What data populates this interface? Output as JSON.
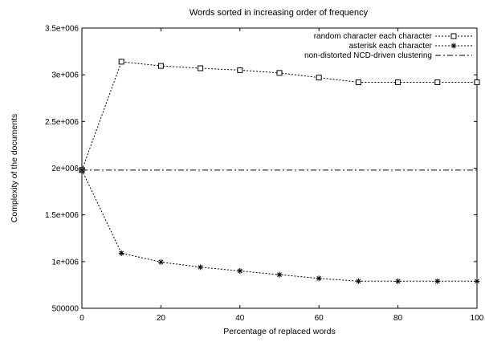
{
  "chart_data": {
    "type": "line",
    "title": "Words sorted in increasing order of frequency",
    "xlabel": "Percentage of replaced words",
    "ylabel": "Complexity of the documents",
    "xlim": [
      0,
      100
    ],
    "ylim": [
      500000,
      3500000
    ],
    "x_ticks": [
      0,
      20,
      40,
      60,
      80,
      100
    ],
    "x_tick_labels": [
      "0",
      "20",
      "40",
      "60",
      "80",
      "100"
    ],
    "y_ticks": [
      500000,
      1000000,
      1500000,
      2000000,
      2500000,
      3000000,
      3500000
    ],
    "y_tick_labels": [
      "500000",
      "1e+006",
      "1.5e+006",
      "2e+006",
      "2.5e+006",
      "3e+006",
      "3.5e+006"
    ],
    "grid": false,
    "legend_position": "top-right",
    "series": [
      {
        "name": "random character each character",
        "marker": "square",
        "line_style": "dotted",
        "x": [
          0,
          10,
          20,
          30,
          40,
          50,
          60,
          70,
          80,
          90,
          100
        ],
        "y": [
          1980000,
          3140000,
          3095000,
          3070000,
          3050000,
          3020000,
          2970000,
          2920000,
          2920000,
          2920000,
          2920000
        ]
      },
      {
        "name": "asterisk each character",
        "marker": "asterisk",
        "line_style": "dotted",
        "x": [
          0,
          10,
          20,
          30,
          40,
          50,
          60,
          70,
          80,
          90,
          100
        ],
        "y": [
          1980000,
          1090000,
          995000,
          940000,
          900000,
          860000,
          820000,
          790000,
          790000,
          790000,
          790000
        ]
      },
      {
        "name": "non-distorted NCD-driven clustering",
        "marker": "none",
        "line_style": "dash-dot",
        "x": [
          0,
          100
        ],
        "y": [
          1980000,
          1980000
        ]
      }
    ]
  }
}
